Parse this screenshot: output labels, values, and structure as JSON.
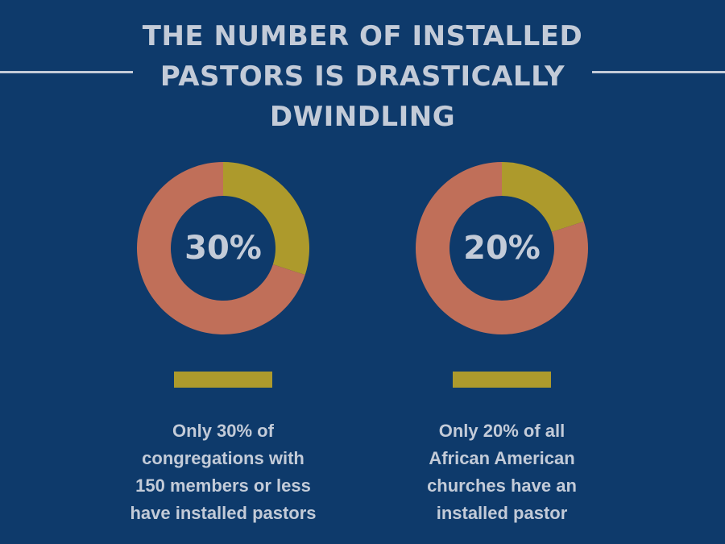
{
  "title": "THE NUMBER OF INSTALLED\nPASTORS IS DRASTICALLY\nDWINDLING",
  "colors": {
    "background": "#0e3a6b",
    "text": "#c3cbd8",
    "highlight": "#ad9a2c",
    "remainder": "#c06f59"
  },
  "chart_data": [
    {
      "type": "pie",
      "label": "30%",
      "slices": [
        {
          "value": 30,
          "color": "#ad9a2c"
        },
        {
          "value": 70,
          "color": "#c06f59"
        }
      ],
      "caption": "Only 30% of\ncongregations with\n150 members or less\nhave installed pastors"
    },
    {
      "type": "pie",
      "label": "20%",
      "slices": [
        {
          "value": 20,
          "color": "#ad9a2c"
        },
        {
          "value": 80,
          "color": "#c06f59"
        }
      ],
      "caption": "Only 20% of all\nAfrican American\nchurches have an\ninstalled pastor"
    }
  ]
}
